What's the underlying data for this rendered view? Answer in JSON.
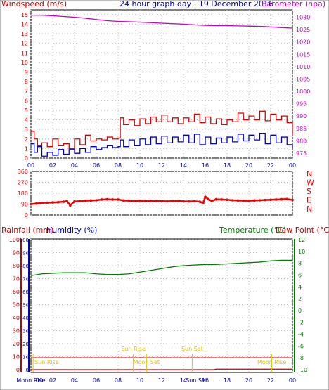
{
  "page": {
    "top_title": "24 hour graph day : 19 December 2016",
    "background": "#ffffff",
    "frame_color": "#000000",
    "grid_color": "#c0c0c0"
  },
  "colors": {
    "wind_speed": "#0000cc",
    "wind_gust": "#dd0000",
    "barometer": "#cc00cc",
    "wind_direction": "#ee0000",
    "rainfall": "#cc0000",
    "humidity": "#0000cc",
    "temperature": "#008000",
    "dew_point": "#cc0000",
    "sun_moon_label": "#e0c000"
  },
  "chart_data": [
    {
      "id": "wind-barometer",
      "type": "line",
      "title": "24 hour graph day : 19 December 2016",
      "ylabel_left": "Windspeed (m/s)",
      "ylabel_right": "Barometer (hpa)",
      "x_ticks": [
        "00",
        "02",
        "04",
        "06",
        "08",
        "10",
        "12",
        "14",
        "16",
        "18",
        "20",
        "22",
        "00"
      ],
      "x_range": [
        0,
        24
      ],
      "y_left_ticks": [
        0,
        1,
        2,
        3,
        4,
        5,
        6,
        7,
        8,
        9,
        10,
        11,
        12,
        13,
        14,
        15
      ],
      "y_left_range": [
        0,
        15.5
      ],
      "y_right_ticks": [
        975,
        980,
        985,
        990,
        995,
        1000,
        1005,
        1010,
        1015,
        1020,
        1025,
        1030
      ],
      "y_right_range": [
        973,
        1033
      ],
      "grid": true,
      "series": [
        {
          "name": "Barometer (hpa)",
          "axis": "right",
          "x": [
            0,
            1,
            2,
            3,
            4,
            5,
            6,
            7,
            8,
            9,
            10,
            11,
            12,
            13,
            14,
            15,
            16,
            17,
            18,
            19,
            20,
            21,
            22,
            23,
            24
          ],
          "values": [
            1030.8,
            1030.8,
            1030.6,
            1030.3,
            1030.0,
            1029.6,
            1029.1,
            1028.6,
            1028.3,
            1028.2,
            1028.0,
            1027.8,
            1027.6,
            1027.4,
            1027.2,
            1026.9,
            1026.7,
            1026.6,
            1026.6,
            1026.5,
            1026.4,
            1026.3,
            1026.1,
            1025.8,
            1025.6
          ]
        },
        {
          "name": "Windspeed gust (m/s)",
          "axis": "left",
          "x": [
            0,
            0.3,
            0.6,
            1.0,
            1.5,
            2.0,
            2.5,
            3.0,
            3.5,
            4.0,
            4.5,
            5.0,
            5.5,
            6.0,
            6.5,
            7.0,
            7.5,
            8.0,
            8.2,
            8.5,
            9.0,
            9.5,
            10.0,
            10.5,
            11.0,
            11.5,
            12.0,
            12.5,
            13.0,
            13.5,
            14.0,
            14.5,
            15.0,
            15.5,
            16.0,
            16.5,
            17.0,
            17.5,
            18.0,
            18.5,
            19.0,
            19.5,
            20.0,
            20.5,
            21.0,
            21.5,
            22.0,
            22.5,
            23.0,
            23.5,
            24.0
          ],
          "values": [
            2.8,
            2.0,
            1.3,
            1.6,
            1.2,
            2.0,
            1.3,
            1.5,
            1.0,
            2.0,
            1.4,
            2.4,
            1.8,
            2.0,
            1.9,
            2.2,
            2.0,
            2.1,
            4.2,
            3.5,
            4.0,
            3.4,
            4.1,
            3.6,
            4.3,
            3.8,
            4.5,
            3.8,
            4.2,
            3.6,
            4.2,
            3.8,
            4.6,
            3.7,
            4.3,
            3.6,
            4.1,
            3.5,
            4.0,
            3.8,
            4.7,
            4.0,
            4.4,
            4.0,
            4.9,
            3.9,
            4.6,
            4.0,
            4.4,
            3.7,
            2.3
          ]
        },
        {
          "name": "Windspeed (m/s)",
          "axis": "left",
          "x": [
            0,
            0.3,
            0.6,
            1.0,
            1.5,
            2.0,
            2.5,
            3.0,
            3.5,
            4.0,
            4.5,
            5.0,
            5.5,
            6.0,
            6.5,
            7.0,
            7.5,
            8.0,
            8.2,
            8.5,
            9.0,
            9.5,
            10.0,
            10.5,
            11.0,
            11.5,
            12.0,
            12.5,
            13.0,
            13.5,
            14.0,
            14.5,
            15.0,
            15.5,
            16.0,
            16.5,
            17.0,
            17.5,
            18.0,
            18.5,
            19.0,
            19.5,
            20.0,
            20.5,
            21.0,
            21.5,
            22.0,
            22.5,
            23.0,
            23.5,
            24.0
          ],
          "values": [
            1.5,
            0.6,
            1.2,
            0.2,
            0.6,
            0.3,
            0.9,
            0.4,
            0.9,
            0.5,
            1.0,
            0.6,
            1.2,
            0.9,
            1.1,
            1.3,
            1.1,
            1.2,
            1.9,
            1.2,
            1.9,
            1.3,
            2.0,
            1.4,
            2.2,
            1.5,
            2.3,
            1.6,
            2.2,
            1.7,
            2.4,
            1.6,
            2.5,
            1.4,
            2.2,
            1.5,
            2.1,
            1.6,
            2.2,
            1.7,
            2.5,
            1.8,
            2.4,
            1.9,
            2.6,
            1.5,
            2.4,
            1.6,
            2.2,
            1.4,
            1.1
          ]
        }
      ]
    },
    {
      "id": "wind-direction",
      "type": "scatter",
      "x_ticks": [
        "00",
        "02",
        "04",
        "06",
        "08",
        "10",
        "12",
        "14",
        "16",
        "18",
        "20",
        "22",
        "00"
      ],
      "x_range": [
        0,
        24
      ],
      "y_left_ticks": [
        0,
        90,
        180,
        270,
        360
      ],
      "y_range": [
        0,
        360
      ],
      "y_right_labels": [
        "N",
        "W",
        "S",
        "E",
        "N"
      ],
      "grid": true,
      "series": [
        {
          "name": "Wind direction",
          "x": [
            0,
            0.5,
            1,
            1.5,
            2,
            2.5,
            3,
            3.3,
            3.6,
            4,
            4.5,
            5,
            5.5,
            6,
            6.5,
            7,
            7.5,
            8,
            8.5,
            9,
            9.5,
            10,
            10.5,
            11,
            11.5,
            12,
            12.5,
            13,
            13.5,
            14,
            14.5,
            15,
            15.5,
            15.8,
            16,
            16.3,
            16.6,
            17,
            17.5,
            18,
            18.5,
            19,
            19.5,
            20,
            20.5,
            21,
            21.5,
            22,
            22.5,
            23,
            23.5,
            24
          ],
          "values": [
            90,
            95,
            100,
            102,
            104,
            106,
            110,
            115,
            80,
            112,
            115,
            118,
            120,
            122,
            128,
            130,
            128,
            128,
            120,
            118,
            115,
            118,
            116,
            117,
            115,
            115,
            113,
            115,
            116,
            113,
            112,
            114,
            110,
            100,
            150,
            130,
            115,
            130,
            128,
            126,
            122,
            120,
            118,
            118,
            120,
            122,
            124,
            126,
            128,
            130,
            132,
            125
          ]
        }
      ]
    },
    {
      "id": "rain-humidity-temp",
      "type": "line",
      "ylabel_left_1": "Rainfall (mm)",
      "ylabel_left_2": "Humidity (%)",
      "ylabel_right_1": "Temperature (°C)",
      "ylabel_right_2": "Dew Point (°C)",
      "x_ticks": [
        "Moon Rise",
        "02",
        "04",
        "06",
        "08",
        "10",
        "12",
        "14",
        "16",
        "18",
        "20",
        "22",
        "00"
      ],
      "x_tick_first_parts": [
        "Moon Rise",
        "00"
      ],
      "x_range": [
        0,
        24
      ],
      "y_rain_ticks": [
        0,
        10,
        20,
        30,
        40,
        50,
        60,
        70,
        80,
        90,
        100
      ],
      "y_humidity_ticks": [
        0,
        10,
        20,
        30,
        40,
        50,
        60,
        70,
        80,
        90,
        100
      ],
      "y_temp_ticks": [
        12,
        10,
        8,
        6,
        4,
        2,
        0,
        -2,
        -4,
        -6,
        -8,
        -10
      ],
      "y_temp_range": [
        -10,
        12
      ],
      "grid": true,
      "series": [
        {
          "name": "Temperature (°C)",
          "axis": "right",
          "x": [
            0,
            1,
            2,
            3,
            4,
            5,
            6,
            7,
            8,
            9,
            10,
            11,
            12,
            13,
            14,
            15,
            16,
            17,
            18,
            19,
            20,
            21,
            22,
            23,
            24
          ],
          "values": [
            5.9,
            6.2,
            6.3,
            6.4,
            6.4,
            6.4,
            6.2,
            6.1,
            6.1,
            6.2,
            6.5,
            6.8,
            7.1,
            7.4,
            7.6,
            7.7,
            7.8,
            7.8,
            7.9,
            8.0,
            8.1,
            8.2,
            8.4,
            8.5,
            8.5
          ]
        },
        {
          "name": "Rainfall (mm)",
          "axis": "left",
          "x": [
            0,
            16.8,
            17.0,
            24
          ],
          "values": [
            0,
            0,
            0.4,
            0.4
          ]
        }
      ],
      "annotations": [
        {
          "label": "Sun Rise",
          "x": 0.2,
          "row": "lower"
        },
        {
          "label": "Sun Rise",
          "x": 9.4,
          "row": "upper"
        },
        {
          "label": "Moon Set",
          "x": 10.6,
          "row": "lower"
        },
        {
          "label": "Sun Set",
          "x": 14.8,
          "row": "upper"
        },
        {
          "label": "Moon Rise",
          "x": 22.1,
          "row": "lower"
        }
      ],
      "bottom_labels": [
        {
          "label": "Moon Rise",
          "x": 0
        },
        {
          "label": "Sun Set",
          "x": 15.2
        }
      ]
    }
  ]
}
